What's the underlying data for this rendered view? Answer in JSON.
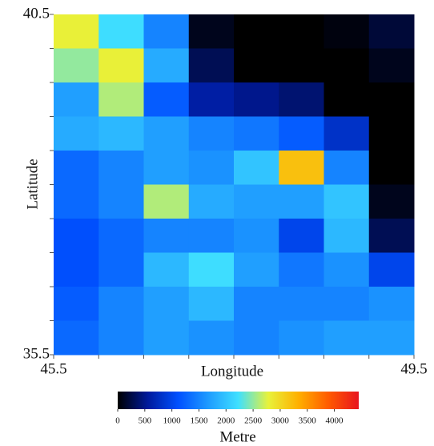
{
  "chart_data": {
    "type": "heatmap",
    "xlabel": "Longitude",
    "ylabel": "Latitude",
    "x": [
      45.75,
      46.25,
      46.75,
      47.25,
      47.75,
      48.25,
      48.75,
      49.25
    ],
    "y": [
      40.25,
      39.75,
      39.25,
      38.75,
      38.25,
      37.75,
      37.25,
      36.75,
      36.25,
      35.75
    ],
    "values": [
      [
        2800,
        2200,
        1500,
        100,
        0,
        0,
        50,
        200
      ],
      [
        2500,
        2800,
        1800,
        300,
        0,
        0,
        0,
        100
      ],
      [
        1700,
        2600,
        1200,
        600,
        500,
        400,
        0,
        0
      ],
      [
        1800,
        1900,
        1700,
        1500,
        1400,
        1200,
        800,
        0
      ],
      [
        1300,
        1500,
        1700,
        1600,
        2000,
        3200,
        1500,
        0
      ],
      [
        1300,
        1500,
        2600,
        1800,
        1700,
        1700,
        2000,
        100
      ],
      [
        1100,
        1300,
        1500,
        1500,
        1600,
        1000,
        1900,
        300
      ],
      [
        1100,
        1300,
        1900,
        2200,
        1700,
        1400,
        1600,
        1000
      ],
      [
        1200,
        1500,
        1700,
        1900,
        1500,
        1500,
        1500,
        1600
      ],
      [
        1300,
        1500,
        1700,
        1600,
        1500,
        1600,
        1700,
        1700
      ]
    ],
    "xlim": [
      45.5,
      49.5
    ],
    "ylim": [
      35.5,
      40.5
    ],
    "xticks": [
      45.5,
      49.5
    ],
    "yticks": [
      35.5,
      40.5
    ],
    "xminorticks": [
      46,
      46.5,
      47,
      47.5,
      48,
      48.5,
      49
    ],
    "yminorticks": [
      36,
      36.5,
      37,
      37.5,
      38,
      38.5,
      39,
      39.5,
      40
    ],
    "colorbar": {
      "label": "Metre",
      "lim": [
        0,
        4450
      ],
      "ticks": [
        0,
        500,
        1000,
        1500,
        2000,
        2500,
        3000,
        3500,
        4000
      ],
      "colors": [
        "#000000",
        "#001a9c",
        "#0050ff",
        "#1e9bff",
        "#3fe0ff",
        "#e8f23a",
        "#ffb000",
        "#ff5a00",
        "#e8141e"
      ]
    }
  }
}
